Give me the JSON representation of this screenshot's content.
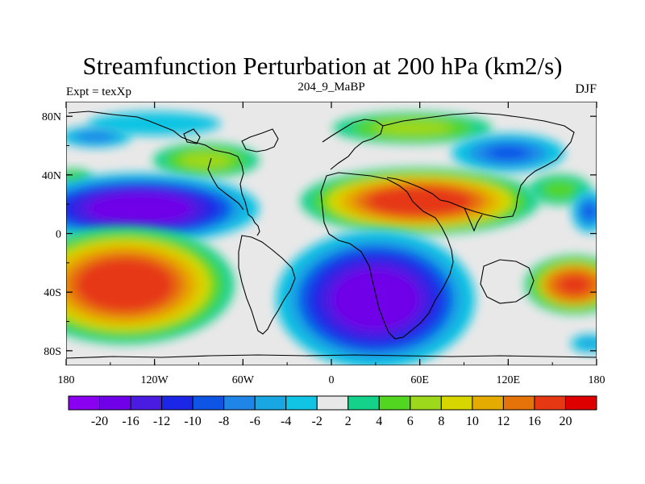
{
  "chart_data": {
    "type": "heatmap",
    "title": "Streamfunction Perturbation at 200 hPa (km2/s)",
    "left_string": "Expt = texXp",
    "center_string": "204_9_MaBP",
    "right_string": "DJF",
    "x_ticks": [
      {
        "value": -180,
        "label": "180"
      },
      {
        "value": -120,
        "label": "120W"
      },
      {
        "value": -60,
        "label": "60W"
      },
      {
        "value": 0,
        "label": "0"
      },
      {
        "value": 60,
        "label": "60E"
      },
      {
        "value": 120,
        "label": "120E"
      },
      {
        "value": 180,
        "label": "180"
      }
    ],
    "y_ticks": [
      {
        "value": 80,
        "label": "80N"
      },
      {
        "value": 40,
        "label": "40N"
      },
      {
        "value": 0,
        "label": "0"
      },
      {
        "value": -40,
        "label": "40S"
      },
      {
        "value": -80,
        "label": "80S"
      }
    ],
    "xlim": [
      -180,
      180
    ],
    "ylim": [
      -90,
      90
    ],
    "colorbar": {
      "levels": [
        "-20",
        "-16",
        "-12",
        "-10",
        "-8",
        "-6",
        "-4",
        "-2",
        "2",
        "4",
        "6",
        "8",
        "10",
        "12",
        "16",
        "20"
      ],
      "colors": [
        "#8a00f0",
        "#6f00e8",
        "#4a1be0",
        "#1b26e6",
        "#0e55e6",
        "#1f86e8",
        "#18a7e3",
        "#11c4e3",
        "#e8e8e8",
        "#14d28a",
        "#52d620",
        "#9ed81c",
        "#d8d600",
        "#e6ab00",
        "#e6720a",
        "#e63812",
        "#de0000"
      ]
    },
    "features": [
      {
        "name": "neg-north-pacific-arctic",
        "sign": "neg",
        "lon": -120,
        "lat": 75,
        "rx": 50,
        "ry": 9,
        "amp": -4
      },
      {
        "name": "neg-north-atlantic-arctic",
        "sign": "neg",
        "lon": -160,
        "lat": 66,
        "rx": 20,
        "ry": 6,
        "amp": -9
      },
      {
        "name": "pos-north-america",
        "sign": "pos",
        "lon": -85,
        "lat": 50,
        "rx": 30,
        "ry": 10,
        "amp": 9
      },
      {
        "name": "pos-west-atlantic-edge",
        "sign": "pos",
        "lon": -175,
        "lat": 38,
        "rx": 12,
        "ry": 6,
        "amp": 6
      },
      {
        "name": "neg-north-pacific-band",
        "sign": "neg",
        "lon": -130,
        "lat": 17,
        "rx": 60,
        "ry": 18,
        "amp": -22
      },
      {
        "name": "pos-arctic-siberia",
        "sign": "pos",
        "lon": 55,
        "lat": 72,
        "rx": 45,
        "ry": 9,
        "amp": 9
      },
      {
        "name": "neg-east-asia",
        "sign": "neg",
        "lon": 120,
        "lat": 55,
        "rx": 32,
        "ry": 11,
        "amp": -10
      },
      {
        "name": "pos-eurasia-band",
        "sign": "pos",
        "lon": 60,
        "lat": 22,
        "rx": 60,
        "ry": 17,
        "amp": 22
      },
      {
        "name": "pos-east-pacific-edge",
        "sign": "pos",
        "lon": 155,
        "lat": 30,
        "rx": 20,
        "ry": 10,
        "amp": 6
      },
      {
        "name": "neg-east-pacific-edge",
        "sign": "neg",
        "lon": 175,
        "lat": 15,
        "rx": 10,
        "ry": 12,
        "amp": -10
      },
      {
        "name": "pos-south-pacific",
        "sign": "pos",
        "lon": -140,
        "lat": -35,
        "rx": 55,
        "ry": 30,
        "amp": 22
      },
      {
        "name": "neg-south-atlantic-africa",
        "sign": "neg",
        "lon": 30,
        "lat": -45,
        "rx": 50,
        "ry": 35,
        "amp": -22
      },
      {
        "name": "pos-south-indian-edge",
        "sign": "pos",
        "lon": 165,
        "lat": -35,
        "rx": 25,
        "ry": 15,
        "amp": 20
      },
      {
        "name": "neg-southern-ocean",
        "sign": "neg",
        "lon": 175,
        "lat": -75,
        "rx": 12,
        "ry": 6,
        "amp": -6
      }
    ]
  }
}
